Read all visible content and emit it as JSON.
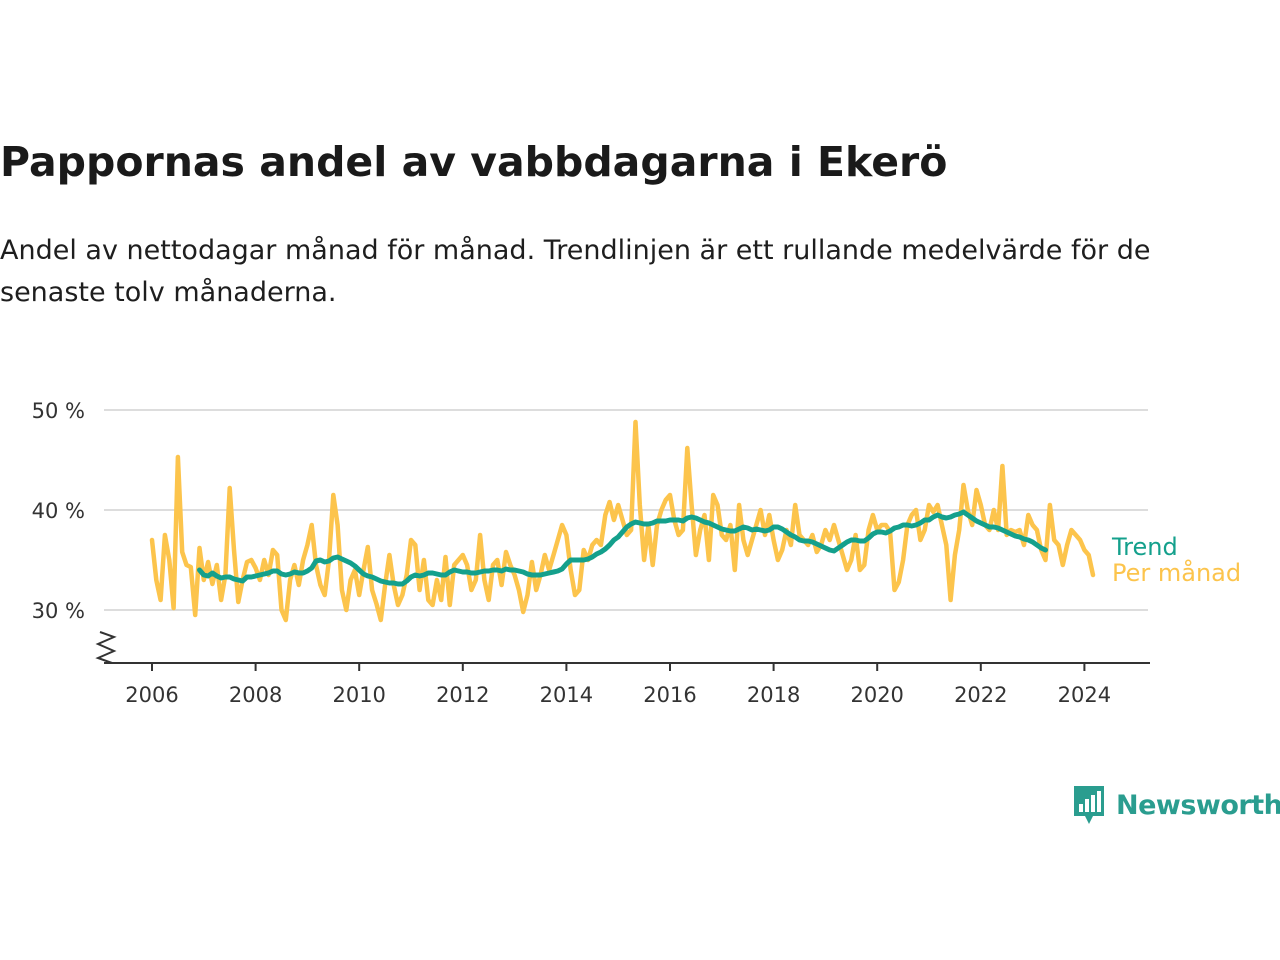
{
  "title": "Pappornas andel av vabbdagarna i Ekerö",
  "subtitle": "Andel av nettodagar månad för månad. Trendlinjen är ett rullande medelvärde för de senaste tolv månaderna.",
  "brand": {
    "name": "Newsworthy",
    "color": "#2a9d8f"
  },
  "colors": {
    "trend": "#14a08c",
    "monthly": "#fcc44c",
    "grid": "#dddddd",
    "axis": "#333333"
  },
  "chart_data": {
    "type": "line",
    "x_start": "2006-01",
    "x_step": "1 month",
    "ylim": [
      25,
      50
    ],
    "y_ticks": [
      30,
      40,
      50
    ],
    "y_tick_labels": [
      "30 %",
      "40 %",
      "50 %"
    ],
    "x_ticks": [
      2006,
      2008,
      2010,
      2012,
      2014,
      2016,
      2018,
      2020,
      2022,
      2024
    ],
    "x_tick_labels": [
      "2006",
      "2008",
      "2010",
      "2012",
      "2014",
      "2016",
      "2018",
      "2020",
      "2022",
      "2024"
    ],
    "y_axis_break": true,
    "grid": true,
    "series": [
      {
        "name": "Per månad",
        "values": [
          37.0,
          33.0,
          31.0,
          37.5,
          35.0,
          30.2,
          45.3,
          35.8,
          34.5,
          34.3,
          29.5,
          36.2,
          33.0,
          34.8,
          32.6,
          34.5,
          31.0,
          33.5,
          42.2,
          36.0,
          30.8,
          33.0,
          34.8,
          35.0,
          34.2,
          33.0,
          35.0,
          33.5,
          36.0,
          35.5,
          30.0,
          29.0,
          33.0,
          34.5,
          32.5,
          35.0,
          36.5,
          38.5,
          34.5,
          32.5,
          31.5,
          35.0,
          41.5,
          38.5,
          32.0,
          30.0,
          33.0,
          34.0,
          31.5,
          34.0,
          36.3,
          32.0,
          30.6,
          29.0,
          32.5,
          35.5,
          32.5,
          30.5,
          31.5,
          33.5,
          37.0,
          36.5,
          32.0,
          35.0,
          31.0,
          30.5,
          33.0,
          31.0,
          35.3,
          30.5,
          34.5,
          35.0,
          35.5,
          34.5,
          32.0,
          33.0,
          37.5,
          33.0,
          31.0,
          34.5,
          35.0,
          32.5,
          35.8,
          34.5,
          33.5,
          32.0,
          29.8,
          31.5,
          34.8,
          32.0,
          33.5,
          35.5,
          34.0,
          35.5,
          37.0,
          38.5,
          37.5,
          34.0,
          31.5,
          32.0,
          36.0,
          35.0,
          36.5,
          37.0,
          36.5,
          39.5,
          40.8,
          39.0,
          40.5,
          39.0,
          37.5,
          38.0,
          48.8,
          40.5,
          35.0,
          38.5,
          34.5,
          38.5,
          40.0,
          41.0,
          41.5,
          39.0,
          37.5,
          38.0,
          46.2,
          40.5,
          35.5,
          38.0,
          39.5,
          35.0,
          41.5,
          40.5,
          37.5,
          37.0,
          38.5,
          34.0,
          40.5,
          37.0,
          35.5,
          37.0,
          38.5,
          40.0,
          37.5,
          39.5,
          37.0,
          35.0,
          36.0,
          38.0,
          36.5,
          40.5,
          37.5,
          37.0,
          36.5,
          37.5,
          35.8,
          36.5,
          38.0,
          37.0,
          38.5,
          37.0,
          35.5,
          34.0,
          35.0,
          37.5,
          34.0,
          34.5,
          38.0,
          39.5,
          38.0,
          38.5,
          38.5,
          37.8,
          32.0,
          32.8,
          35.0,
          38.5,
          39.5,
          40.0,
          37.0,
          38.0,
          40.5,
          39.8,
          40.5,
          38.5,
          36.5,
          31.0,
          35.5,
          38.0,
          42.5,
          40.0,
          38.5,
          42.0,
          40.5,
          38.5,
          38.0,
          40.0,
          38.0,
          44.4,
          37.5,
          38.0,
          37.8,
          38.0,
          36.5,
          39.5,
          38.5,
          38.0,
          36.0,
          35.0,
          40.5,
          37.0,
          36.5,
          34.5,
          36.5,
          38.0,
          37.5,
          37.0,
          36.0,
          35.5,
          33.5
        ],
        "color": "#fcc44c"
      },
      {
        "name": "Trend",
        "x_start_index": 11,
        "values": [
          34.0,
          33.5,
          33.4,
          33.7,
          33.4,
          33.2,
          33.3,
          33.3,
          33.1,
          33.0,
          32.9,
          33.3,
          33.3,
          33.4,
          33.5,
          33.6,
          33.7,
          33.9,
          33.9,
          33.6,
          33.5,
          33.6,
          33.8,
          33.7,
          33.7,
          33.9,
          34.2,
          34.9,
          35.0,
          34.8,
          34.9,
          35.2,
          35.3,
          35.1,
          34.9,
          34.7,
          34.4,
          34.0,
          33.6,
          33.4,
          33.3,
          33.1,
          32.9,
          32.8,
          32.7,
          32.7,
          32.6,
          32.6,
          32.9,
          33.3,
          33.5,
          33.4,
          33.5,
          33.7,
          33.7,
          33.6,
          33.5,
          33.5,
          33.8,
          34.0,
          33.9,
          33.8,
          33.8,
          33.7,
          33.7,
          33.8,
          33.9,
          33.9,
          34.0,
          34.0,
          33.9,
          34.1,
          34.0,
          34.0,
          33.9,
          33.8,
          33.6,
          33.5,
          33.5,
          33.5,
          33.6,
          33.7,
          33.8,
          33.9,
          34.1,
          34.6,
          35.0,
          35.0,
          35.0,
          35.0,
          35.1,
          35.3,
          35.6,
          35.8,
          36.1,
          36.5,
          37.0,
          37.3,
          37.8,
          38.3,
          38.6,
          38.8,
          38.7,
          38.6,
          38.6,
          38.7,
          38.9,
          38.9,
          38.9,
          39.0,
          39.0,
          39.0,
          38.9,
          39.2,
          39.3,
          39.2,
          39.0,
          38.8,
          38.7,
          38.5,
          38.3,
          38.1,
          38.0,
          37.9,
          37.9,
          38.1,
          38.3,
          38.2,
          38.0,
          38.1,
          38.0,
          37.9,
          38.0,
          38.3,
          38.3,
          38.1,
          37.8,
          37.5,
          37.3,
          37.0,
          36.9,
          36.9,
          36.8,
          36.6,
          36.4,
          36.2,
          36.0,
          35.9,
          36.2,
          36.5,
          36.8,
          37.0,
          37.0,
          36.9,
          36.9,
          37.2,
          37.6,
          37.8,
          37.8,
          37.7,
          37.9,
          38.2,
          38.3,
          38.5,
          38.5,
          38.4,
          38.5,
          38.7,
          39.0,
          39.0,
          39.3,
          39.5,
          39.3,
          39.2,
          39.3,
          39.5,
          39.6,
          39.8,
          39.5,
          39.2,
          38.9,
          38.7,
          38.5,
          38.3,
          38.3,
          38.2,
          38.0,
          37.8,
          37.6,
          37.4,
          37.3,
          37.1,
          37.0,
          36.8,
          36.5,
          36.2,
          36.0
        ],
        "color": "#14a08c"
      }
    ]
  }
}
